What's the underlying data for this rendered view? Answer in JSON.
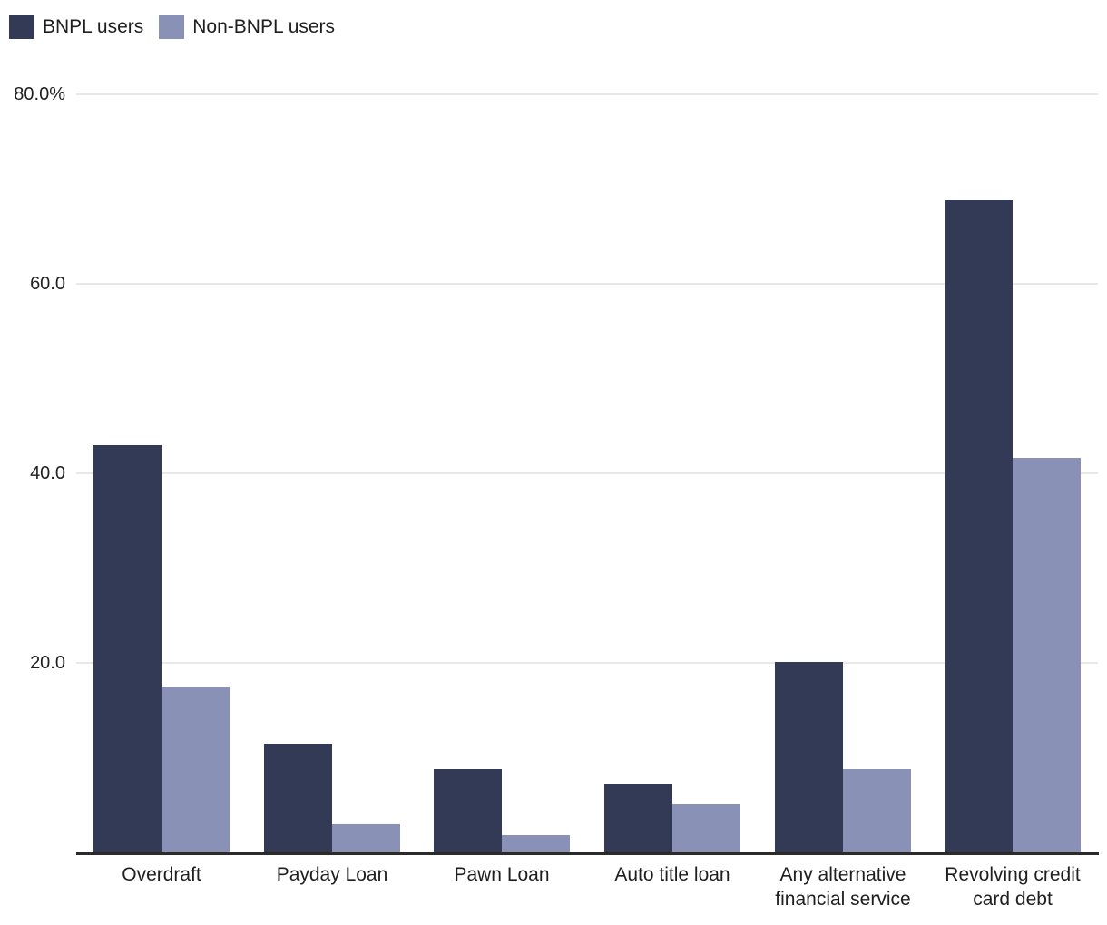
{
  "chart_data": {
    "type": "bar",
    "title": "",
    "xlabel": "",
    "ylabel": "",
    "unit": "percent",
    "categories": [
      "Overdraft",
      "Payday Loan",
      "Pawn Loan",
      "Auto title loan",
      "Any alternative financial service",
      "Revolving credit card debt"
    ],
    "series": [
      {
        "name": "BNPL users",
        "color": "#333a56",
        "values": [
          43.0,
          11.5,
          8.8,
          7.3,
          20.1,
          68.9
        ]
      },
      {
        "name": "Non-BNPL users",
        "color": "#8a91b6",
        "values": [
          17.4,
          3.0,
          1.8,
          5.1,
          8.8,
          41.6
        ]
      }
    ],
    "ylim": [
      0,
      80
    ],
    "y_ticks": [
      {
        "value": 20,
        "label": "20.0"
      },
      {
        "value": 40,
        "label": "40.0"
      },
      {
        "value": 60,
        "label": "60.0"
      },
      {
        "value": 80,
        "label": "80.0%"
      }
    ],
    "grid": "horizontal",
    "legend_position": "top-left"
  },
  "legend": {
    "items": [
      {
        "label": "BNPL users",
        "color": "#333a56"
      },
      {
        "label": "Non-BNPL users",
        "color": "#8a91b6"
      }
    ]
  },
  "colors": {
    "background": "#ffffff",
    "gridline": "#e8e8e8",
    "axis_line": "#2b2b2b",
    "text": "#1f1f1f"
  }
}
